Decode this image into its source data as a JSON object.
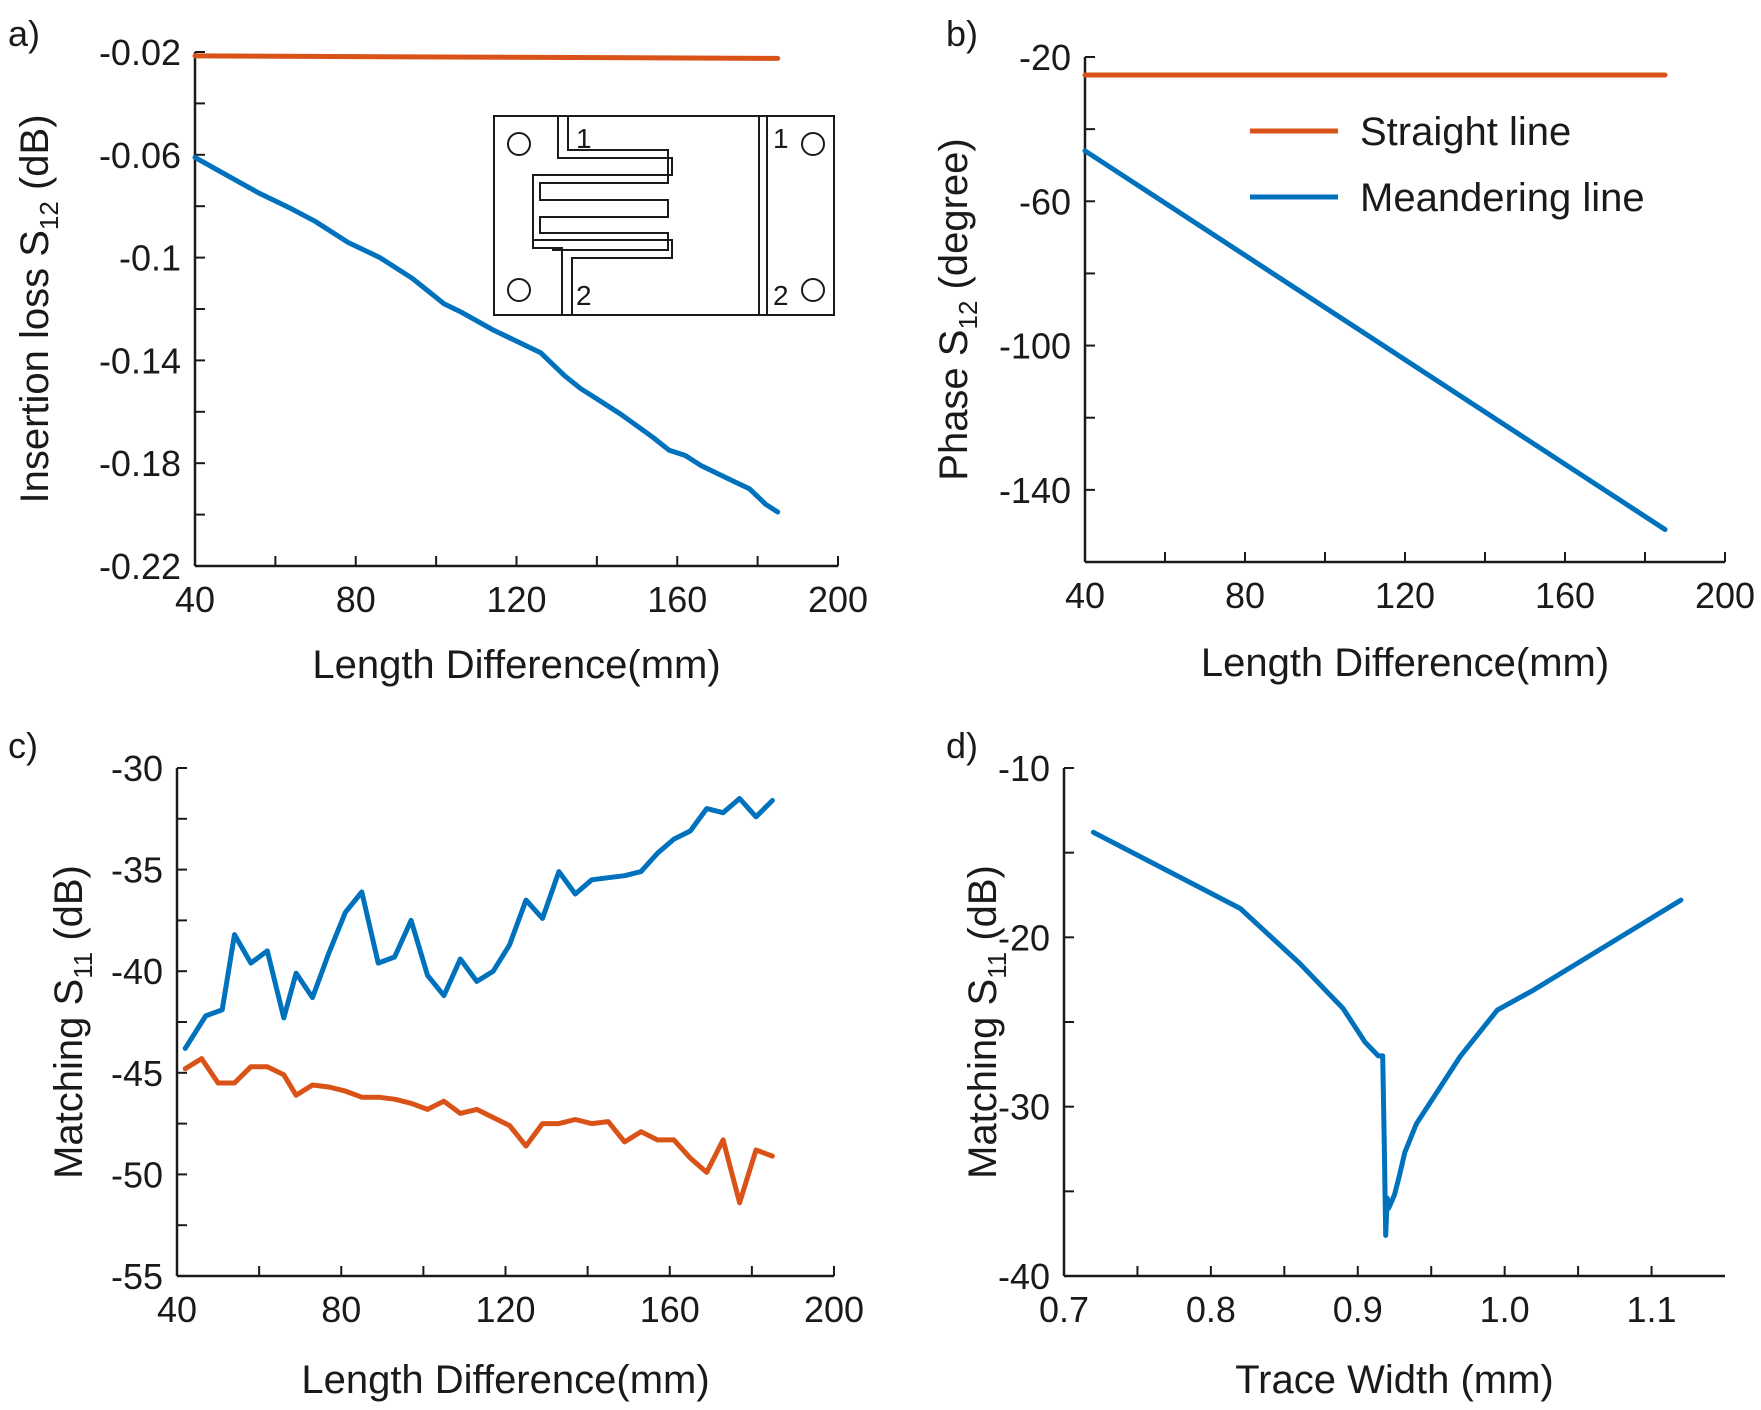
{
  "colors": {
    "straight": "#d95319",
    "meandering": "#0072bd",
    "axis": "#1a1a1a"
  },
  "legend": {
    "straight": "Straight line",
    "meandering": "Meandering line"
  },
  "inset": {
    "port1_blue": "1",
    "port2_blue": "2",
    "port1_orange": "1",
    "port2_orange": "2"
  },
  "chart_data": [
    {
      "id": "a",
      "panel_label": "a)",
      "type": "line",
      "xlabel": "Length Difference(mm)",
      "ylabel_main": "Insertion loss S",
      "ylabel_sub": "12",
      "ylabel_tail": " (dB)",
      "xlim": [
        40,
        200
      ],
      "ylim": [
        -0.22,
        -0.02
      ],
      "xticks": [
        40,
        80,
        120,
        160,
        200
      ],
      "xtick_labels": [
        "40",
        "80",
        "120",
        "160",
        "200"
      ],
      "yticks": [
        -0.22,
        -0.18,
        -0.14,
        -0.1,
        -0.06,
        -0.02
      ],
      "ytick_labels": [
        "-0.22",
        "-0.18",
        "-0.14",
        "-0.1",
        "-0.06",
        "-0.02"
      ],
      "series": [
        {
          "name": "Straight line",
          "color_key": "straight",
          "x": [
            40,
            185
          ],
          "y": [
            -0.0215,
            -0.0225
          ]
        },
        {
          "name": "Meandering line",
          "color_key": "meandering",
          "x": [
            40,
            48,
            56,
            64,
            70,
            74,
            78,
            86,
            94,
            98,
            102,
            106,
            114,
            122,
            126,
            132,
            136,
            140,
            146,
            154,
            158,
            162,
            166,
            170,
            174,
            178,
            182,
            185
          ],
          "y": [
            -0.061,
            -0.068,
            -0.075,
            -0.081,
            -0.086,
            -0.09,
            -0.094,
            -0.1,
            -0.108,
            -0.113,
            -0.118,
            -0.121,
            -0.128,
            -0.134,
            -0.137,
            -0.146,
            -0.151,
            -0.155,
            -0.161,
            -0.17,
            -0.175,
            -0.177,
            -0.181,
            -0.184,
            -0.187,
            -0.19,
            -0.196,
            -0.199
          ]
        }
      ]
    },
    {
      "id": "b",
      "panel_label": "b)",
      "type": "line",
      "xlabel": "Length Difference(mm)",
      "ylabel_main": "Phase S",
      "ylabel_sub": "12",
      "ylabel_tail": " (degree)",
      "xlim": [
        40,
        200
      ],
      "ylim": [
        -160,
        -20
      ],
      "xticks": [
        40,
        80,
        120,
        160,
        200
      ],
      "xtick_labels": [
        "40",
        "80",
        "120",
        "160",
        "200"
      ],
      "yticks": [
        -140,
        -100,
        -60,
        -20
      ],
      "ytick_labels": [
        "-140",
        "-100",
        "-60",
        "-20"
      ],
      "series": [
        {
          "name": "Straight line",
          "color_key": "straight",
          "x": [
            40,
            185
          ],
          "y": [
            -25,
            -25
          ]
        },
        {
          "name": "Meandering line",
          "color_key": "meandering",
          "x": [
            40,
            185
          ],
          "y": [
            -46,
            -151
          ]
        }
      ]
    },
    {
      "id": "c",
      "panel_label": "c)",
      "type": "line",
      "xlabel": "Length Difference(mm)",
      "ylabel_main": "Matching S",
      "ylabel_sub": "11",
      "ylabel_tail": " (dB)",
      "xlim": [
        40,
        200
      ],
      "ylim": [
        -55,
        -30
      ],
      "xticks": [
        40,
        80,
        120,
        160,
        200
      ],
      "xtick_labels": [
        "40",
        "80",
        "120",
        "160",
        "200"
      ],
      "yticks": [
        -55,
        -50,
        -45,
        -40,
        -35,
        -30
      ],
      "ytick_labels": [
        "-55",
        "-50",
        "-45",
        "-40",
        "-35",
        "-30"
      ],
      "series": [
        {
          "name": "Meandering line",
          "color_key": "meandering",
          "x": [
            42,
            47,
            51,
            54,
            58,
            62,
            66,
            69,
            73,
            77,
            81,
            85,
            89,
            93,
            97,
            101,
            105,
            109,
            113,
            117,
            121,
            125,
            129,
            133,
            137,
            141,
            145,
            149,
            153,
            157,
            161,
            165,
            169,
            173,
            177,
            181,
            185
          ],
          "y": [
            -43.8,
            -42.2,
            -41.9,
            -38.2,
            -39.6,
            -39.0,
            -42.3,
            -40.1,
            -41.3,
            -39.1,
            -37.1,
            -36.1,
            -39.6,
            -39.3,
            -37.5,
            -40.2,
            -41.2,
            -39.4,
            -40.5,
            -40.0,
            -38.7,
            -36.5,
            -37.4,
            -35.1,
            -36.2,
            -35.5,
            -35.4,
            -35.3,
            -35.1,
            -34.2,
            -33.5,
            -33.1,
            -32.0,
            -32.2,
            -31.5,
            -32.4,
            -31.6
          ]
        },
        {
          "name": "Straight line",
          "color_key": "straight",
          "x": [
            42,
            46,
            50,
            54,
            58,
            62,
            66,
            69,
            73,
            77,
            81,
            85,
            89,
            93,
            97,
            101,
            105,
            109,
            113,
            117,
            121,
            125,
            129,
            133,
            137,
            141,
            145,
            149,
            153,
            157,
            161,
            165,
            169,
            173,
            177,
            181,
            185
          ],
          "y": [
            -44.8,
            -44.3,
            -45.5,
            -45.5,
            -44.7,
            -44.7,
            -45.1,
            -46.1,
            -45.6,
            -45.7,
            -45.9,
            -46.2,
            -46.2,
            -46.3,
            -46.5,
            -46.8,
            -46.4,
            -47.0,
            -46.8,
            -47.2,
            -47.6,
            -48.6,
            -47.5,
            -47.5,
            -47.3,
            -47.5,
            -47.4,
            -48.4,
            -47.9,
            -48.3,
            -48.3,
            -49.2,
            -49.9,
            -48.3,
            -51.4,
            -48.8,
            -49.1
          ]
        }
      ]
    },
    {
      "id": "d",
      "panel_label": "d)",
      "type": "line",
      "xlabel": "Trace Width (mm)",
      "ylabel_main": "Matching S",
      "ylabel_sub": "11",
      "ylabel_tail": " (dB)",
      "xlim": [
        0.7,
        1.15
      ],
      "ylim": [
        -40,
        -10
      ],
      "xticks": [
        0.7,
        0.8,
        0.9,
        1.0,
        1.1
      ],
      "xtick_labels": [
        "0.7",
        "0.8",
        "0.9",
        "1.0",
        "1.1"
      ],
      "yticks": [
        -40,
        -30,
        -20,
        -10
      ],
      "ytick_labels": [
        "-40",
        "-30",
        "-20",
        "-10"
      ],
      "series": [
        {
          "name": "Meandering line",
          "color_key": "meandering",
          "x": [
            0.72,
            0.82,
            0.86,
            0.89,
            0.905,
            0.914,
            0.917,
            0.918,
            0.919,
            0.92,
            0.921,
            0.923,
            0.925,
            0.928,
            0.932,
            0.94,
            0.97,
            0.995,
            1.02,
            1.12
          ],
          "y": [
            -13.8,
            -18.3,
            -21.5,
            -24.2,
            -26.2,
            -27.0,
            -27.0,
            -32.0,
            -37.6,
            -35.4,
            -36.0,
            -35.6,
            -35.2,
            -34.2,
            -32.7,
            -31.0,
            -27.0,
            -24.3,
            -23.1,
            -17.8
          ]
        }
      ]
    }
  ]
}
